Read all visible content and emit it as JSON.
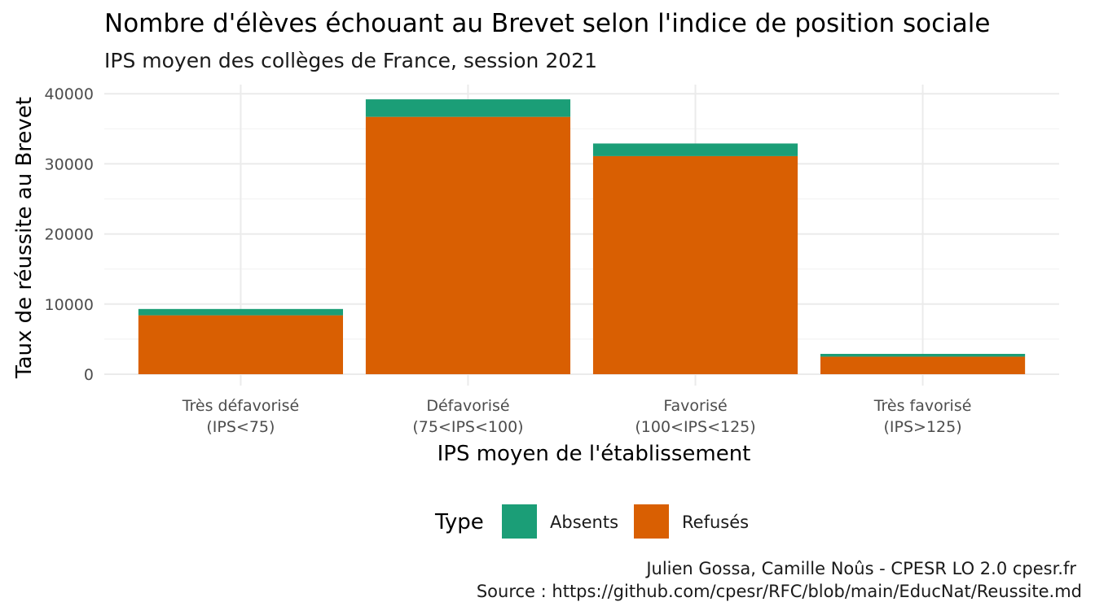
{
  "chart_data": {
    "type": "bar",
    "stacked": true,
    "title": "Nombre d'élèves échouant au Brevet selon l'indice de position sociale",
    "subtitle": "IPS moyen des collèges de France, session 2021",
    "xlabel": "IPS moyen de l'établissement",
    "ylabel": "Taux de réussite au Brevet",
    "categories": [
      [
        "Très défavorisé",
        "(IPS<75)"
      ],
      [
        "Défavorisé",
        "(75<IPS<100)"
      ],
      [
        "Favorisé",
        "(100<IPS<125)"
      ],
      [
        "Très favorisé",
        "(IPS>125)"
      ]
    ],
    "series": [
      {
        "name": "Refusés",
        "color": "#d95f02",
        "values": [
          8400,
          36700,
          31100,
          2500
        ]
      },
      {
        "name": "Absents",
        "color": "#1b9e77",
        "values": [
          900,
          2500,
          1800,
          400
        ]
      }
    ],
    "ylim": [
      0,
      41000
    ],
    "yticks": [
      0,
      10000,
      20000,
      30000,
      40000
    ],
    "grid": true,
    "legend": {
      "title": "Type",
      "position": "bottom",
      "entries": [
        {
          "label": "Absents",
          "color": "#1b9e77"
        },
        {
          "label": "Refusés",
          "color": "#d95f02"
        }
      ]
    },
    "caption": [
      "Julien Gossa, Camille Noûs - CPESR LO 2.0 cpesr.fr",
      "Source : https://github.com/cpesr/RFC/blob/main/EducNat/Reussite.md"
    ]
  }
}
